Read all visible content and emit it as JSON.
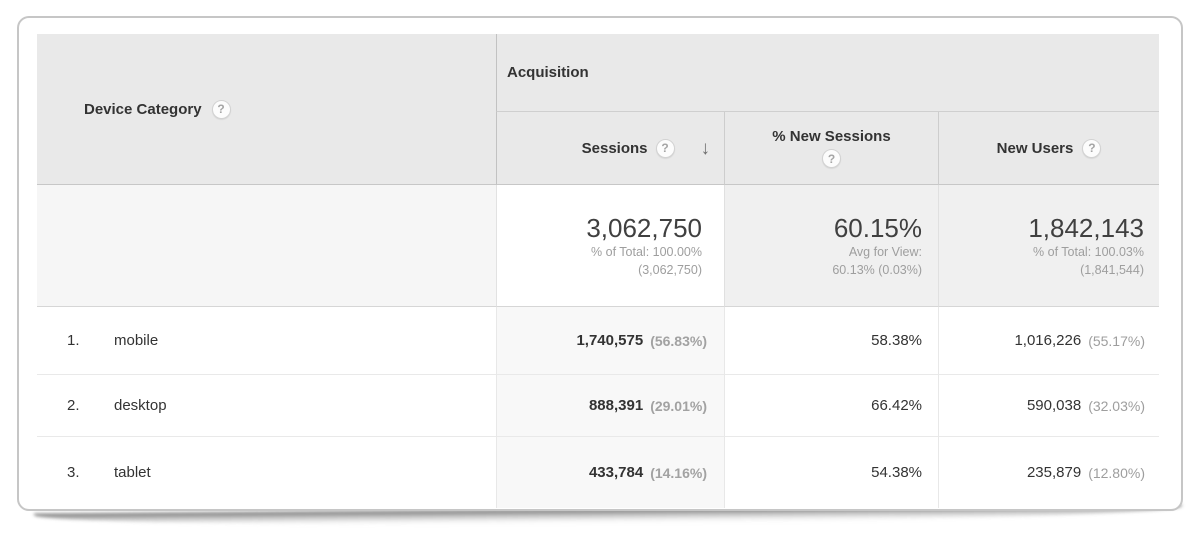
{
  "table": {
    "dimension_header": {
      "label": "Device Category"
    },
    "group_header": {
      "label": "Acquisition"
    },
    "metric_headers": {
      "sessions": "Sessions",
      "new_sessions": "% New Sessions",
      "new_users": "New Users"
    },
    "sort_arrow": "↓",
    "help_glyph": "?",
    "summary": {
      "sessions": {
        "value": "3,062,750",
        "note1": "% of Total: 100.00%",
        "note2": "(3,062,750)"
      },
      "new_sessions": {
        "value": "60.15%",
        "note1": "Avg for View:",
        "note2": "60.13% (0.03%)"
      },
      "new_users": {
        "value": "1,842,143",
        "note1": "% of Total: 100.03%",
        "note2": "(1,841,544)"
      }
    },
    "rows": [
      {
        "index": "1.",
        "name": "mobile",
        "sessions": "1,740,575",
        "sessions_pct": "(56.83%)",
        "new_sessions": "58.38%",
        "new_users": "1,016,226",
        "new_users_pct": "(55.17%)"
      },
      {
        "index": "2.",
        "name": "desktop",
        "sessions": "888,391",
        "sessions_pct": "(29.01%)",
        "new_sessions": "66.42%",
        "new_users": "590,038",
        "new_users_pct": "(32.03%)"
      },
      {
        "index": "3.",
        "name": "tablet",
        "sessions": "433,784",
        "sessions_pct": "(14.16%)",
        "new_sessions": "54.38%",
        "new_users": "235,879",
        "new_users_pct": "(12.80%)"
      }
    ]
  },
  "colors": {
    "header_bg": "#e9e9e9",
    "sorted_column_bg": "#f8f8f8",
    "summary_metric_bg": "#f0f0f0",
    "summary_dimension_bg": "#f6f6f6",
    "text_primary": "#333333",
    "text_muted": "#9e9e9e",
    "card_border": "#c6c6c6"
  }
}
